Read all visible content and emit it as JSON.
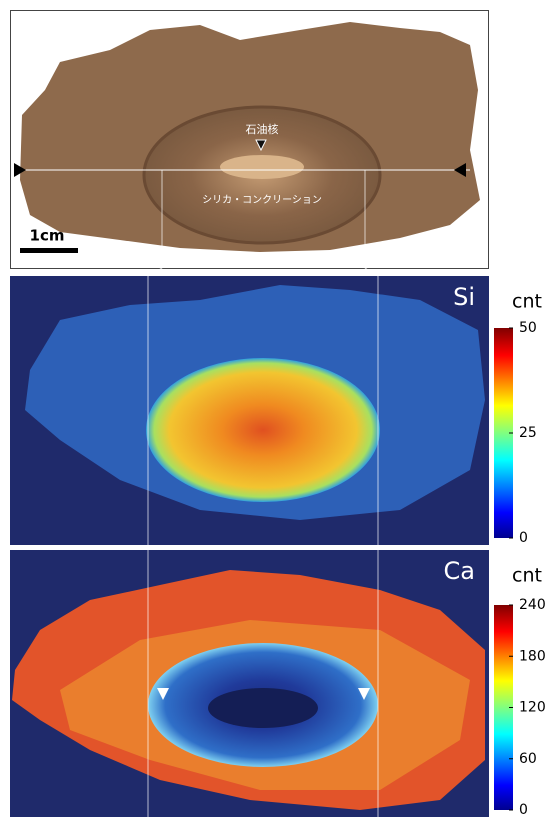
{
  "photo": {
    "labels": [
      "石油核",
      "シリカ・コンクリーション"
    ],
    "scale_bar": "1cm"
  },
  "maps": [
    {
      "element": "Si",
      "colorbar": {
        "label": "cnt",
        "lim": [
          0,
          50
        ],
        "ticks": [
          0,
          25,
          50
        ]
      }
    },
    {
      "element": "Ca",
      "colorbar": {
        "label": "cnt",
        "lim": [
          0,
          240
        ],
        "ticks": [
          0,
          60,
          120,
          180,
          240
        ]
      }
    }
  ]
}
